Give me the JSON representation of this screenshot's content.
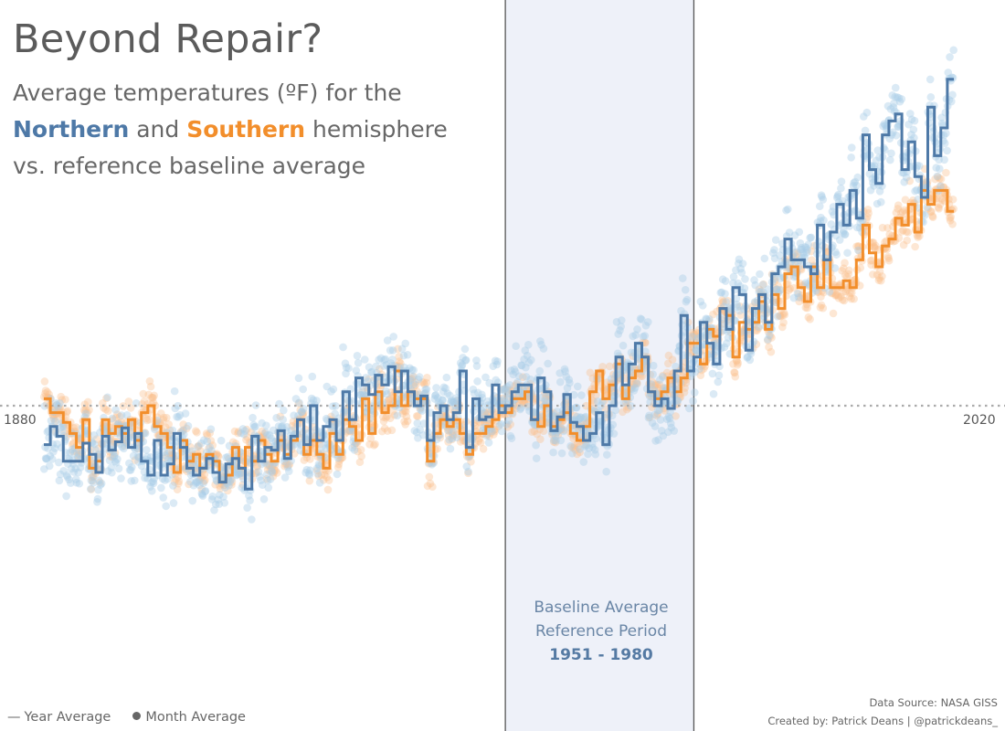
{
  "title": "Beyond Repair?",
  "subtitle": {
    "line1": "Average temperatures (ºF) for the",
    "north_word": "Northern",
    "and_word": "and",
    "south_word": "Southern",
    "line2_end": "hemisphere",
    "line3": "vs. reference baseline average"
  },
  "baseline_annotation": {
    "line1": "Baseline Average",
    "line2": "Reference Period",
    "years": "1951 - 1980"
  },
  "legend": {
    "line_glyph": "—",
    "year_label": "Year Average",
    "month_label": "Month Average"
  },
  "credits": {
    "source": "Data Source: NASA GISS",
    "author": "Created by: Patrick Deans | @patrickdeans_"
  },
  "colors": {
    "northern": "#4e79a7",
    "southern": "#f28e2b",
    "northern_dots": "#a9cde8",
    "southern_dots": "#f9c08f",
    "baseline_band": "#eef1f9"
  },
  "chart_data": {
    "type": "line",
    "xlim": [
      1880,
      2020
    ],
    "ylim": [
      -1.75,
      2.25
    ],
    "x_tick_labels": [
      "1880",
      "2020"
    ],
    "baseline_value": 0,
    "baseline_period": [
      1951,
      1980
    ],
    "monthly_points": "shown as scattered translucent dots around each yearly value",
    "series": [
      {
        "name": "Northern",
        "values": [
          -0.28,
          -0.15,
          -0.22,
          -0.4,
          -0.4,
          -0.4,
          -0.27,
          -0.35,
          -0.48,
          -0.22,
          -0.32,
          -0.26,
          -0.16,
          -0.3,
          -0.2,
          -0.4,
          -0.5,
          -0.25,
          -0.5,
          -0.42,
          -0.2,
          -0.3,
          -0.45,
          -0.5,
          -0.45,
          -0.38,
          -0.48,
          -0.55,
          -0.42,
          -0.38,
          -0.45,
          -0.6,
          -0.22,
          -0.4,
          -0.3,
          -0.32,
          -0.18,
          -0.38,
          -0.22,
          -0.1,
          -0.28,
          0.0,
          -0.25,
          -0.15,
          -0.1,
          -0.25,
          0.1,
          -0.1,
          0.2,
          0.15,
          0.08,
          0.22,
          0.15,
          0.28,
          0.1,
          0.25,
          0.1,
          0.0,
          0.07,
          -0.25,
          -0.05,
          0.0,
          -0.1,
          -0.05,
          0.25,
          -0.3,
          0.05,
          -0.1,
          -0.08,
          0.15,
          -0.05,
          0.0,
          0.1,
          0.15,
          0.15,
          -0.1,
          0.2,
          0.1,
          -0.18,
          -0.08,
          0.08,
          -0.12,
          -0.15,
          -0.25,
          -0.2,
          -0.05,
          -0.28,
          0.0,
          0.35,
          0.15,
          0.3,
          0.45,
          0.35,
          0.1,
          0.0,
          0.05,
          -0.02,
          0.25,
          0.65,
          0.25,
          0.35,
          0.6,
          0.45,
          0.3,
          0.7,
          0.55,
          0.85,
          0.8,
          0.4,
          0.7,
          0.8,
          0.6,
          0.95,
          1.0,
          1.2,
          1.05,
          1.05,
          1.0,
          0.95,
          1.3,
          1.05,
          1.25,
          1.45,
          1.3,
          1.55,
          1.35,
          1.95,
          1.7,
          1.6,
          1.95,
          2.05,
          2.1,
          1.7,
          1.9,
          1.65,
          1.5,
          2.15,
          1.8,
          2.0,
          2.35
        ],
        "color": "#4e79a7"
      },
      {
        "name": "Southern",
        "values": [
          0.05,
          -0.05,
          -0.05,
          -0.12,
          -0.2,
          -0.3,
          -0.1,
          -0.45,
          -0.4,
          -0.1,
          -0.2,
          -0.15,
          -0.2,
          -0.1,
          -0.25,
          -0.05,
          0.0,
          -0.15,
          -0.2,
          -0.3,
          -0.48,
          -0.25,
          -0.4,
          -0.35,
          -0.45,
          -0.35,
          -0.4,
          -0.55,
          -0.5,
          -0.3,
          -0.45,
          -0.3,
          -0.4,
          -0.25,
          -0.35,
          -0.4,
          -0.25,
          -0.35,
          -0.25,
          -0.1,
          -0.35,
          -0.25,
          -0.35,
          -0.45,
          -0.2,
          -0.35,
          -0.1,
          -0.15,
          -0.25,
          0.05,
          -0.2,
          0.1,
          -0.05,
          0.0,
          0.25,
          0.0,
          0.1,
          0.05,
          0.05,
          -0.4,
          -0.2,
          -0.1,
          -0.15,
          -0.1,
          -0.2,
          -0.35,
          -0.2,
          -0.2,
          -0.15,
          -0.1,
          0.0,
          -0.05,
          0.05,
          0.05,
          0.1,
          -0.1,
          -0.15,
          0.0,
          -0.15,
          -0.1,
          -0.05,
          -0.2,
          -0.25,
          -0.15,
          0.1,
          0.25,
          0.05,
          0.15,
          0.3,
          0.05,
          0.2,
          0.25,
          0.35,
          0.1,
          0.05,
          0.1,
          0.2,
          0.1,
          0.2,
          0.45,
          0.45,
          0.3,
          0.55,
          0.5,
          0.7,
          0.65,
          0.35,
          0.6,
          0.55,
          0.6,
          0.75,
          0.55,
          0.8,
          0.7,
          0.95,
          1.0,
          0.85,
          0.75,
          1.0,
          0.85,
          1.05,
          0.85,
          0.85,
          0.9,
          0.85,
          1.05,
          1.3,
          1.1,
          1.0,
          1.15,
          1.2,
          1.35,
          1.3,
          1.45,
          1.25,
          1.55,
          1.45,
          1.55,
          1.55,
          1.4
        ],
        "color": "#f28e2b"
      }
    ]
  }
}
